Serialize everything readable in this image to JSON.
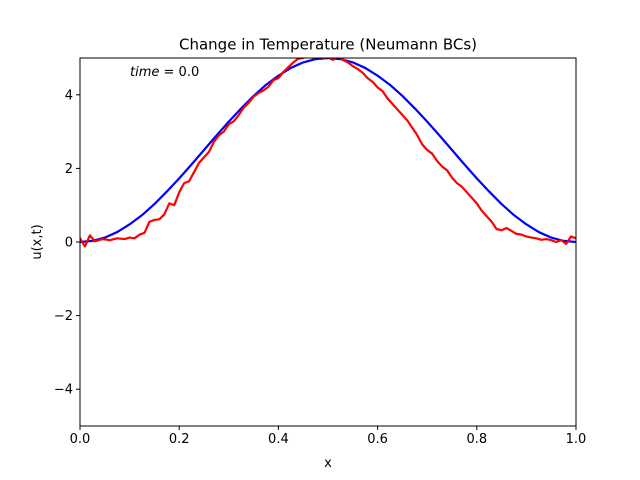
{
  "chart_data": {
    "type": "line",
    "title": "Change in Temperature (Neumann BCs)",
    "xlabel": "x",
    "ylabel": "u(x,t)",
    "xlim": [
      0,
      1
    ],
    "ylim": [
      -5,
      5
    ],
    "grid": false,
    "legend": "none",
    "xticks": [
      0.0,
      0.2,
      0.4,
      0.6,
      0.8,
      1.0
    ],
    "xtick_labels": [
      "0.0",
      "0.2",
      "0.4",
      "0.6",
      "0.8",
      "1.0"
    ],
    "yticks": [
      -4,
      -2,
      0,
      2,
      4
    ],
    "ytick_labels": [
      "−4",
      "−2",
      "0",
      "2",
      "4"
    ],
    "annotation": {
      "label": "time",
      "equals": " = ",
      "value": "0.0"
    },
    "series": [
      {
        "color": "#0000ff",
        "x": [
          0.0,
          0.025,
          0.05,
          0.075,
          0.1,
          0.125,
          0.15,
          0.175,
          0.2,
          0.225,
          0.25,
          0.275,
          0.3,
          0.325,
          0.35,
          0.375,
          0.4,
          0.425,
          0.45,
          0.475,
          0.5,
          0.525,
          0.55,
          0.575,
          0.6,
          0.625,
          0.65,
          0.675,
          0.7,
          0.725,
          0.75,
          0.775,
          0.8,
          0.825,
          0.85,
          0.875,
          0.9,
          0.925,
          0.95,
          0.975,
          1.0
        ],
        "y": [
          0.0,
          0.03,
          0.12,
          0.27,
          0.48,
          0.73,
          1.03,
          1.37,
          1.73,
          2.11,
          2.5,
          2.89,
          3.27,
          3.63,
          3.97,
          4.27,
          4.52,
          4.73,
          4.88,
          4.97,
          5.0,
          4.97,
          4.88,
          4.73,
          4.52,
          4.27,
          3.97,
          3.63,
          3.27,
          2.89,
          2.5,
          2.11,
          1.73,
          1.37,
          1.03,
          0.73,
          0.48,
          0.27,
          0.12,
          0.03,
          0.0
        ]
      },
      {
        "color": "#ff0000",
        "x": [
          0.0,
          0.01,
          0.02,
          0.03,
          0.045,
          0.06,
          0.075,
          0.09,
          0.1,
          0.11,
          0.12,
          0.13,
          0.14,
          0.15,
          0.16,
          0.17,
          0.18,
          0.19,
          0.2,
          0.21,
          0.22,
          0.23,
          0.24,
          0.25,
          0.26,
          0.27,
          0.28,
          0.29,
          0.3,
          0.31,
          0.32,
          0.33,
          0.34,
          0.35,
          0.36,
          0.37,
          0.38,
          0.39,
          0.4,
          0.41,
          0.42,
          0.43,
          0.44,
          0.45,
          0.46,
          0.47,
          0.48,
          0.49,
          0.5,
          0.51,
          0.52,
          0.53,
          0.54,
          0.55,
          0.56,
          0.57,
          0.58,
          0.59,
          0.6,
          0.61,
          0.62,
          0.63,
          0.64,
          0.65,
          0.66,
          0.67,
          0.68,
          0.69,
          0.7,
          0.71,
          0.72,
          0.73,
          0.74,
          0.75,
          0.76,
          0.77,
          0.78,
          0.79,
          0.8,
          0.81,
          0.82,
          0.83,
          0.84,
          0.85,
          0.86,
          0.87,
          0.88,
          0.89,
          0.9,
          0.91,
          0.92,
          0.93,
          0.94,
          0.95,
          0.96,
          0.97,
          0.98,
          0.99,
          1.0
        ],
        "y": [
          0.1,
          -0.12,
          0.18,
          0.02,
          0.08,
          0.05,
          0.1,
          0.08,
          0.12,
          0.1,
          0.2,
          0.25,
          0.55,
          0.6,
          0.62,
          0.75,
          1.05,
          1.0,
          1.35,
          1.6,
          1.65,
          1.9,
          2.15,
          2.3,
          2.45,
          2.72,
          2.9,
          3.0,
          3.2,
          3.28,
          3.45,
          3.65,
          3.78,
          3.95,
          4.05,
          4.12,
          4.22,
          4.4,
          4.45,
          4.62,
          4.75,
          4.88,
          4.98,
          5.0,
          5.12,
          5.0,
          5.05,
          5.0,
          5.02,
          4.95,
          5.05,
          4.95,
          4.88,
          4.78,
          4.7,
          4.6,
          4.45,
          4.35,
          4.2,
          4.1,
          3.9,
          3.75,
          3.6,
          3.45,
          3.3,
          3.1,
          2.9,
          2.65,
          2.5,
          2.4,
          2.2,
          2.05,
          1.95,
          1.75,
          1.6,
          1.5,
          1.35,
          1.2,
          1.05,
          0.85,
          0.7,
          0.55,
          0.35,
          0.32,
          0.38,
          0.3,
          0.22,
          0.2,
          0.15,
          0.12,
          0.1,
          0.06,
          0.08,
          0.05,
          0.0,
          0.05,
          -0.05,
          0.15,
          0.1
        ]
      }
    ]
  }
}
